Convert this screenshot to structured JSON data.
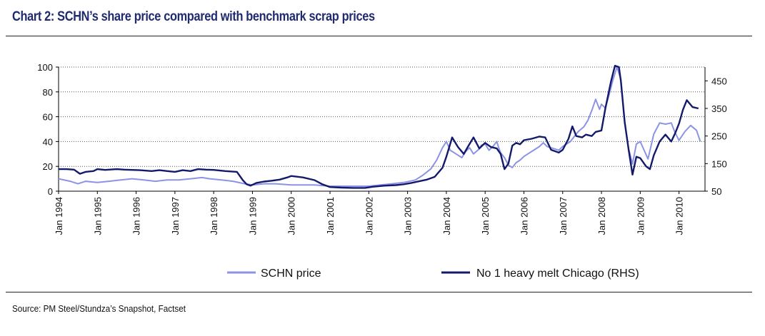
{
  "title": "Chart 2: SCHN’s share price compared with benchmark scrap prices",
  "source": "Source: PM Steel/Stundza’s Snapshot, Factset",
  "chart_data": {
    "type": "line",
    "left_axis": {
      "min": 0,
      "max": 100,
      "ticks": [
        0,
        20,
        40,
        60,
        80,
        100
      ]
    },
    "right_axis": {
      "min": 50,
      "max": 500,
      "ticks": [
        50,
        150,
        250,
        350,
        450
      ]
    },
    "x_range": [
      1994.0,
      2010.67
    ],
    "x_ticks": [
      {
        "x": 1994,
        "label": "Jan 1994"
      },
      {
        "x": 1995,
        "label": "Jan 1995"
      },
      {
        "x": 1996,
        "label": "Jan 1996"
      },
      {
        "x": 1997,
        "label": "Jan 1997"
      },
      {
        "x": 1998,
        "label": "Jan 1998"
      },
      {
        "x": 1999,
        "label": "Jan 1999"
      },
      {
        "x": 2000,
        "label": "Jan 2000"
      },
      {
        "x": 2001,
        "label": "Jan 2001"
      },
      {
        "x": 2002,
        "label": "Jan 2002"
      },
      {
        "x": 2003,
        "label": "Jan 2003"
      },
      {
        "x": 2004,
        "label": "Jan 2004"
      },
      {
        "x": 2005,
        "label": "Jan 2005"
      },
      {
        "x": 2006,
        "label": "Jan 2006"
      },
      {
        "x": 2007,
        "label": "Jan 2007"
      },
      {
        "x": 2008,
        "label": "Jan 2008"
      },
      {
        "x": 2009,
        "label": "Jan 2009"
      },
      {
        "x": 2010,
        "label": "Jan 2010"
      }
    ],
    "grid": "horizontal dotted",
    "legend_position": "bottom",
    "series": [
      {
        "name": "SCHN price",
        "axis": "left",
        "color": "#8c93e6",
        "points": [
          [
            1994.0,
            10
          ],
          [
            1994.3,
            8
          ],
          [
            1994.5,
            6
          ],
          [
            1994.7,
            8
          ],
          [
            1995.0,
            7
          ],
          [
            1995.3,
            8
          ],
          [
            1995.6,
            9
          ],
          [
            1995.9,
            10
          ],
          [
            1996.2,
            9
          ],
          [
            1996.5,
            8
          ],
          [
            1996.8,
            9
          ],
          [
            1997.1,
            9
          ],
          [
            1997.4,
            10
          ],
          [
            1997.7,
            11
          ],
          [
            1997.9,
            10
          ],
          [
            1998.2,
            9
          ],
          [
            1998.5,
            8
          ],
          [
            1998.8,
            6
          ],
          [
            1999.0,
            5
          ],
          [
            1999.3,
            6
          ],
          [
            1999.6,
            6
          ],
          [
            2000.0,
            5
          ],
          [
            2000.3,
            5
          ],
          [
            2000.6,
            5
          ],
          [
            2001.0,
            4
          ],
          [
            2001.3,
            4
          ],
          [
            2001.6,
            4
          ],
          [
            2002.0,
            4
          ],
          [
            2002.3,
            5
          ],
          [
            2002.6,
            6
          ],
          [
            2002.9,
            7
          ],
          [
            2003.2,
            9
          ],
          [
            2003.4,
            13
          ],
          [
            2003.6,
            18
          ],
          [
            2003.75,
            25
          ],
          [
            2003.9,
            35
          ],
          [
            2004.0,
            40
          ],
          [
            2004.1,
            33
          ],
          [
            2004.25,
            30
          ],
          [
            2004.4,
            27
          ],
          [
            2004.5,
            32
          ],
          [
            2004.6,
            35
          ],
          [
            2004.7,
            30
          ],
          [
            2004.85,
            34
          ],
          [
            2004.9,
            37
          ],
          [
            2005.0,
            38
          ],
          [
            2005.1,
            33
          ],
          [
            2005.2,
            36
          ],
          [
            2005.3,
            40
          ],
          [
            2005.35,
            35
          ],
          [
            2005.4,
            31
          ],
          [
            2005.5,
            27
          ],
          [
            2005.6,
            21
          ],
          [
            2005.7,
            19
          ],
          [
            2005.8,
            23
          ],
          [
            2005.9,
            25
          ],
          [
            2006.0,
            28
          ],
          [
            2006.1,
            30
          ],
          [
            2006.25,
            33
          ],
          [
            2006.4,
            36
          ],
          [
            2006.5,
            39
          ],
          [
            2006.6,
            36
          ],
          [
            2006.8,
            34
          ],
          [
            2006.9,
            33
          ],
          [
            2007.0,
            36
          ],
          [
            2007.2,
            40
          ],
          [
            2007.3,
            44
          ],
          [
            2007.4,
            48
          ],
          [
            2007.55,
            52
          ],
          [
            2007.65,
            57
          ],
          [
            2007.75,
            65
          ],
          [
            2007.85,
            74
          ],
          [
            2007.95,
            66
          ],
          [
            2008.0,
            70
          ],
          [
            2008.1,
            67
          ],
          [
            2008.2,
            78
          ],
          [
            2008.3,
            90
          ],
          [
            2008.4,
            100
          ],
          [
            2008.5,
            90
          ],
          [
            2008.6,
            55
          ],
          [
            2008.7,
            34
          ],
          [
            2008.8,
            22
          ],
          [
            2008.9,
            38
          ],
          [
            2009.0,
            40
          ],
          [
            2009.1,
            33
          ],
          [
            2009.2,
            26
          ],
          [
            2009.35,
            46
          ],
          [
            2009.5,
            55
          ],
          [
            2009.65,
            54
          ],
          [
            2009.8,
            55
          ],
          [
            2009.9,
            47
          ],
          [
            2010.0,
            41
          ],
          [
            2010.15,
            48
          ],
          [
            2010.3,
            53
          ],
          [
            2010.45,
            49
          ],
          [
            2010.55,
            40
          ]
        ]
      },
      {
        "name": "No 1 heavy melt Chicago (RHS)",
        "axis": "right",
        "color": "#141a6b",
        "points": [
          [
            1994.0,
            130
          ],
          [
            1994.2,
            130
          ],
          [
            1994.4,
            128
          ],
          [
            1994.55,
            113
          ],
          [
            1994.7,
            120
          ],
          [
            1994.9,
            123
          ],
          [
            1995.0,
            130
          ],
          [
            1995.2,
            127
          ],
          [
            1995.5,
            130
          ],
          [
            1995.7,
            128
          ],
          [
            1995.9,
            127
          ],
          [
            1996.1,
            126
          ],
          [
            1996.4,
            123
          ],
          [
            1996.6,
            126
          ],
          [
            1996.8,
            123
          ],
          [
            1997.0,
            120
          ],
          [
            1997.2,
            126
          ],
          [
            1997.4,
            123
          ],
          [
            1997.6,
            130
          ],
          [
            1997.8,
            128
          ],
          [
            1998.0,
            127
          ],
          [
            1998.3,
            123
          ],
          [
            1998.6,
            120
          ],
          [
            1998.75,
            90
          ],
          [
            1998.85,
            75
          ],
          [
            1998.95,
            70
          ],
          [
            1999.1,
            80
          ],
          [
            1999.3,
            85
          ],
          [
            1999.5,
            88
          ],
          [
            1999.7,
            92
          ],
          [
            1999.9,
            100
          ],
          [
            2000.0,
            105
          ],
          [
            2000.3,
            100
          ],
          [
            2000.6,
            90
          ],
          [
            2000.8,
            75
          ],
          [
            2001.0,
            65
          ],
          [
            2001.3,
            63
          ],
          [
            2001.6,
            62
          ],
          [
            2001.9,
            62
          ],
          [
            2002.1,
            66
          ],
          [
            2002.4,
            70
          ],
          [
            2002.7,
            72
          ],
          [
            2002.9,
            75
          ],
          [
            2003.1,
            80
          ],
          [
            2003.3,
            86
          ],
          [
            2003.5,
            92
          ],
          [
            2003.7,
            102
          ],
          [
            2003.9,
            135
          ],
          [
            2004.0,
            175
          ],
          [
            2004.15,
            245
          ],
          [
            2004.3,
            210
          ],
          [
            2004.45,
            185
          ],
          [
            2004.55,
            210
          ],
          [
            2004.7,
            245
          ],
          [
            2004.85,
            205
          ],
          [
            2005.0,
            225
          ],
          [
            2005.15,
            210
          ],
          [
            2005.3,
            205
          ],
          [
            2005.4,
            185
          ],
          [
            2005.5,
            130
          ],
          [
            2005.6,
            150
          ],
          [
            2005.7,
            215
          ],
          [
            2005.8,
            225
          ],
          [
            2005.9,
            220
          ],
          [
            2006.0,
            235
          ],
          [
            2006.2,
            240
          ],
          [
            2006.4,
            248
          ],
          [
            2006.55,
            245
          ],
          [
            2006.7,
            200
          ],
          [
            2006.9,
            190
          ],
          [
            2007.0,
            200
          ],
          [
            2007.15,
            240
          ],
          [
            2007.25,
            285
          ],
          [
            2007.35,
            250
          ],
          [
            2007.5,
            245
          ],
          [
            2007.6,
            255
          ],
          [
            2007.75,
            250
          ],
          [
            2007.85,
            265
          ],
          [
            2008.0,
            270
          ],
          [
            2008.1,
            350
          ],
          [
            2008.25,
            450
          ],
          [
            2008.35,
            505
          ],
          [
            2008.45,
            500
          ],
          [
            2008.5,
            450
          ],
          [
            2008.6,
            300
          ],
          [
            2008.7,
            200
          ],
          [
            2008.8,
            110
          ],
          [
            2008.9,
            175
          ],
          [
            2009.0,
            170
          ],
          [
            2009.15,
            140
          ],
          [
            2009.25,
            130
          ],
          [
            2009.35,
            180
          ],
          [
            2009.5,
            230
          ],
          [
            2009.65,
            255
          ],
          [
            2009.8,
            230
          ],
          [
            2009.9,
            260
          ],
          [
            2010.0,
            295
          ],
          [
            2010.1,
            345
          ],
          [
            2010.2,
            380
          ],
          [
            2010.35,
            355
          ],
          [
            2010.5,
            350
          ]
        ]
      }
    ]
  }
}
